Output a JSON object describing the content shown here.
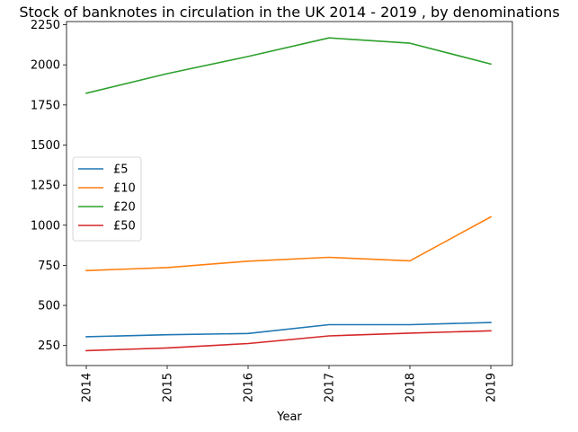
{
  "chart_data": {
    "type": "line",
    "title": "Stock of banknotes in circulation in the UK 2014 - 2019 , by denominations",
    "xlabel": "Year",
    "ylabel": "",
    "x": [
      "2014",
      "2015",
      "2016",
      "2017",
      "2018",
      "2019"
    ],
    "yticks": [
      250,
      500,
      750,
      1000,
      1250,
      1500,
      1750,
      2000,
      2250
    ],
    "ylim": [
      125,
      2270
    ],
    "grid": false,
    "legend_position": "center-left",
    "series": [
      {
        "name": "£5",
        "color": "#1f77b4",
        "values": [
          305,
          317,
          325,
          380,
          380,
          393
        ]
      },
      {
        "name": "£10",
        "color": "#ff7f0e",
        "values": [
          717,
          736,
          776,
          800,
          778,
          1052
        ]
      },
      {
        "name": "£20",
        "color": "#2ca02c",
        "values": [
          1823,
          1945,
          2052,
          2168,
          2135,
          2005
        ]
      },
      {
        "name": "£50",
        "color": "#d62728",
        "values": [
          218,
          235,
          262,
          310,
          327,
          342
        ]
      }
    ]
  }
}
